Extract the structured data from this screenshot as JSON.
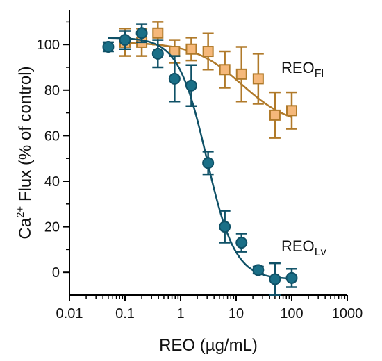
{
  "chart_data": {
    "type": "scatter",
    "xlabel": "REO (µg/mL)",
    "ylabel": {
      "prefix": "Ca",
      "superscript": "2+",
      "suffix": " Flux (% of control)"
    },
    "xscale": "log",
    "xlim": [
      0.01,
      1000
    ],
    "ylim": [
      -10,
      115
    ],
    "x_ticks": [
      {
        "value": 0.01,
        "label": "0.01"
      },
      {
        "value": 0.1,
        "label": "0.1"
      },
      {
        "value": 1,
        "label": "1"
      },
      {
        "value": 10,
        "label": "10"
      },
      {
        "value": 100,
        "label": "100"
      },
      {
        "value": 1000,
        "label": "1000"
      }
    ],
    "y_ticks": [
      {
        "value": 0,
        "label": "0"
      },
      {
        "value": 20,
        "label": "20"
      },
      {
        "value": 40,
        "label": "40"
      },
      {
        "value": 60,
        "label": "60"
      },
      {
        "value": 80,
        "label": "80"
      },
      {
        "value": 100,
        "label": "100"
      }
    ],
    "grid": false,
    "legend": "none",
    "series": [
      {
        "label_main": "REO",
        "label_sub": "Fl",
        "marker": "square",
        "color": "#b07a2a",
        "fill": "#f5b87a",
        "points": [
          {
            "x": 0.1,
            "y": 101,
            "err": 6
          },
          {
            "x": 0.2,
            "y": 101,
            "err": 6
          },
          {
            "x": 0.39,
            "y": 105,
            "err": 5
          },
          {
            "x": 0.78,
            "y": 97,
            "err": 5
          },
          {
            "x": 1.56,
            "y": 98,
            "err": 5
          },
          {
            "x": 3.13,
            "y": 97,
            "err": 8
          },
          {
            "x": 6.25,
            "y": 89,
            "err": 8
          },
          {
            "x": 12.5,
            "y": 87,
            "err": 12
          },
          {
            "x": 25,
            "y": 85,
            "err": 11
          },
          {
            "x": 50,
            "y": 69,
            "err": 10
          },
          {
            "x": 100,
            "y": 71,
            "err": 8
          }
        ],
        "fit": {
          "top": 101,
          "bottom": 64,
          "logIC50": 1.1,
          "hill": 1.0
        }
      },
      {
        "label_main": "REO",
        "label_sub": "Lv",
        "marker": "circle",
        "color": "#0f5167",
        "fill": "#1a6f87",
        "points": [
          {
            "x": 0.05,
            "y": 99,
            "err": 2
          },
          {
            "x": 0.1,
            "y": 102,
            "err": 4
          },
          {
            "x": 0.2,
            "y": 105,
            "err": 4
          },
          {
            "x": 0.39,
            "y": 96,
            "err": 6
          },
          {
            "x": 0.78,
            "y": 85,
            "err": 10
          },
          {
            "x": 1.56,
            "y": 82,
            "err": 9
          },
          {
            "x": 3.13,
            "y": 48,
            "err": 5
          },
          {
            "x": 6.25,
            "y": 20,
            "err": 7
          },
          {
            "x": 12.5,
            "y": 13,
            "err": 4
          },
          {
            "x": 25,
            "y": 1,
            "err": 1.5
          },
          {
            "x": 50,
            "y": -3,
            "err": 7
          },
          {
            "x": 100,
            "y": -2.5,
            "err": 4
          }
        ],
        "fit": {
          "top": 103,
          "bottom": -3,
          "logIC50": 0.47,
          "hill": 1.7
        }
      }
    ]
  }
}
